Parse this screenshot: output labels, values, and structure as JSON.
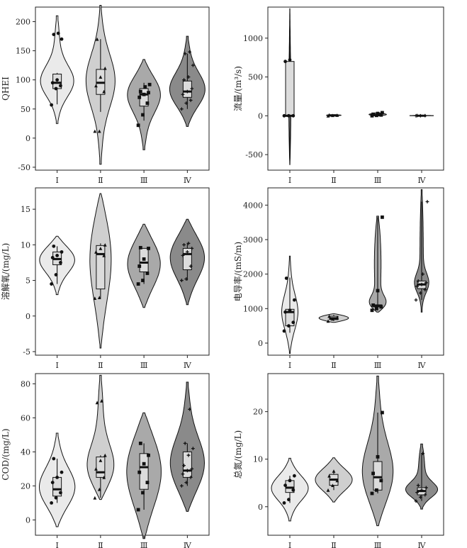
{
  "colors": {
    "I": "#eaeaea",
    "II": "#cfcfcf",
    "III": "#a9a9a9",
    "IV": "#8a8a8a",
    "box_fill": "#dcdcdc",
    "stroke": "#111111"
  },
  "chart_data": [
    {
      "type": "violin",
      "ylabel": "QHEI",
      "ylim": [
        -55,
        225
      ],
      "yticks": [
        -50,
        0,
        50,
        100,
        150,
        200
      ],
      "categories": [
        "Ⅰ",
        "Ⅱ",
        "Ⅲ",
        "Ⅳ"
      ],
      "groups": [
        {
          "min": 25,
          "max": 210,
          "q1": 85,
          "median": 95,
          "q3": 110,
          "whisker_lo": 58,
          "whisker_hi": 112,
          "mode": 95,
          "spread": 0.95,
          "points": [
            57,
            85,
            90,
            95,
            100,
            170,
            178,
            180
          ]
        },
        {
          "min": -45,
          "max": 228,
          "q1": 75,
          "median": 95,
          "q3": 118,
          "whisker_lo": 45,
          "whisker_hi": 170,
          "mode": 100,
          "spread": 0.8,
          "points": [
            12,
            12,
            80,
            90,
            105,
            120,
            170
          ]
        },
        {
          "min": -20,
          "max": 135,
          "q1": 55,
          "median": 75,
          "q3": 85,
          "whisker_lo": 30,
          "whisker_hi": 95,
          "mode": 80,
          "spread": 0.95,
          "points": [
            22,
            40,
            60,
            70,
            75,
            78,
            80,
            88,
            92
          ]
        },
        {
          "min": 20,
          "max": 175,
          "q1": 70,
          "median": 80,
          "q3": 98,
          "whisker_lo": 50,
          "whisker_hi": 145,
          "mode": 80,
          "spread": 1.0,
          "points": [
            50,
            60,
            65,
            75,
            80,
            85,
            100,
            105,
            125,
            145,
            148
          ]
        }
      ]
    },
    {
      "type": "violin",
      "ylabel": "流量/(m³/s)",
      "ylim": [
        -700,
        1400
      ],
      "yticks": [
        -500,
        0,
        500,
        1000
      ],
      "categories": [
        "Ⅰ",
        "Ⅱ",
        "Ⅲ",
        "Ⅳ"
      ],
      "groups": [
        {
          "min": -630,
          "max": 1380,
          "q1": 0,
          "median": 0,
          "q3": 700,
          "whisker_lo": -630,
          "whisker_hi": 1380,
          "mode": 0,
          "spread": 0.06,
          "points": [
            0,
            0,
            0,
            700,
            720
          ]
        },
        {
          "min": 0,
          "max": 15,
          "q1": 0,
          "median": 5,
          "q3": 10,
          "whisker_lo": 0,
          "whisker_hi": 15,
          "mode": 5,
          "spread": 0.4,
          "points": [
            0,
            5,
            8,
            12
          ]
        },
        {
          "min": 0,
          "max": 40,
          "q1": 0,
          "median": 10,
          "q3": 20,
          "whisker_lo": 0,
          "whisker_hi": 40,
          "mode": 10,
          "spread": 0.5,
          "points": [
            0,
            5,
            10,
            20,
            30,
            40
          ]
        },
        {
          "min": 0,
          "max": 5,
          "q1": 0,
          "median": 1,
          "q3": 3,
          "whisker_lo": 0,
          "whisker_hi": 5,
          "mode": 1,
          "spread": 0.7,
          "points": [
            0,
            1,
            2,
            3
          ]
        }
      ]
    },
    {
      "type": "violin",
      "ylabel": "溶解氧/(mg/L)",
      "ylim": [
        -5.5,
        18
      ],
      "yticks": [
        -5,
        0,
        5,
        10,
        15
      ],
      "categories": [
        "Ⅰ",
        "Ⅱ",
        "Ⅲ",
        "Ⅳ"
      ],
      "groups": [
        {
          "min": 3,
          "max": 11.2,
          "q1": 7.2,
          "median": 8.0,
          "q3": 9.0,
          "whisker_lo": 4.5,
          "whisker_hi": 9.8,
          "mode": 8.2,
          "spread": 1.0,
          "points": [
            4.5,
            5.8,
            7.5,
            8.2,
            8.5,
            9.0,
            9.8
          ]
        },
        {
          "min": -4.5,
          "max": 17.2,
          "q1": 3.8,
          "median": 8.7,
          "q3": 9.9,
          "whisker_lo": 2.5,
          "whisker_hi": 10.2,
          "mode": 9.0,
          "spread": 0.6,
          "points": [
            2.5,
            2.6,
            8.5,
            9.0,
            9.5,
            10.0
          ]
        },
        {
          "min": 1.2,
          "max": 12.9,
          "q1": 6.2,
          "median": 7.5,
          "q3": 9.5,
          "whisker_lo": 4.5,
          "whisker_hi": 9.5,
          "mode": 7.5,
          "spread": 0.9,
          "points": [
            4.5,
            5.0,
            6.0,
            7.0,
            8.0,
            9.5,
            9.6
          ]
        },
        {
          "min": 1.6,
          "max": 13.6,
          "q1": 6.5,
          "median": 8.7,
          "q3": 9.5,
          "whisker_lo": 5.0,
          "whisker_hi": 10.2,
          "mode": 8.5,
          "spread": 0.95,
          "points": [
            5.0,
            5.2,
            7.0,
            8.5,
            9.0,
            9.5,
            10.0,
            10.2
          ]
        }
      ]
    },
    {
      "type": "violin",
      "ylabel": "电导率/(mS/m)",
      "ylim": [
        -350,
        4500
      ],
      "yticks": [
        0,
        1000,
        2000,
        3000,
        4000
      ],
      "categories": [
        "Ⅰ",
        "Ⅱ",
        "Ⅲ",
        "Ⅳ"
      ],
      "groups": [
        {
          "min": -300,
          "max": 2520,
          "q1": 500,
          "median": 900,
          "q3": 980,
          "whisker_lo": 300,
          "whisker_hi": 1900,
          "mode": 850,
          "spread": 0.45,
          "points": [
            350,
            500,
            600,
            900,
            950,
            1250,
            1880
          ]
        },
        {
          "min": 600,
          "max": 850,
          "q1": 680,
          "median": 720,
          "q3": 780,
          "whisker_lo": 640,
          "whisker_hi": 820,
          "mode": 730,
          "spread": 0.8,
          "points": [
            640,
            700,
            740,
            780
          ]
        },
        {
          "min": 900,
          "max": 3680,
          "q1": 1050,
          "median": 1080,
          "q3": 1110,
          "whisker_lo": 950,
          "whisker_hi": 3650,
          "mode": 1080,
          "spread": 1.0,
          "points": [
            950,
            1000,
            1050,
            1100,
            1520,
            3650
          ]
        },
        {
          "min": 900,
          "max": 4450,
          "q1": 1580,
          "median": 1700,
          "q3": 1800,
          "whisker_lo": 1250,
          "whisker_hi": 4100,
          "mode": 1700,
          "spread": 0.5,
          "points": [
            1250,
            1450,
            1550,
            1650,
            1700,
            1750,
            1800,
            2000,
            4100
          ]
        }
      ]
    },
    {
      "type": "violin",
      "ylabel": "COD/(mg/L)",
      "ylim": [
        -9,
        86
      ],
      "yticks": [
        0,
        20,
        40,
        60,
        80
      ],
      "categories": [
        "Ⅰ",
        "Ⅱ",
        "Ⅲ",
        "Ⅳ"
      ],
      "groups": [
        {
          "min": -4,
          "max": 51,
          "q1": 14,
          "median": 18,
          "q3": 25,
          "whisker_lo": 10,
          "whisker_hi": 36,
          "mode": 18,
          "spread": 1.0,
          "points": [
            10,
            13,
            16,
            22,
            25,
            28,
            36
          ]
        },
        {
          "min": 12,
          "max": 85,
          "q1": 25,
          "median": 28,
          "q3": 37,
          "whisker_lo": 13,
          "whisker_hi": 38,
          "mode": 28,
          "spread": 0.9,
          "points": [
            13,
            18,
            25,
            30,
            35,
            38,
            69,
            70
          ]
        },
        {
          "min": -11,
          "max": 63,
          "q1": 18,
          "median": 31,
          "q3": 39,
          "whisker_lo": 6,
          "whisker_hi": 45,
          "mode": 30,
          "spread": 0.95,
          "points": [
            6,
            16,
            22,
            28,
            33,
            38,
            45
          ]
        },
        {
          "min": 5,
          "max": 81,
          "q1": 25,
          "median": 29,
          "q3": 40,
          "whisker_lo": 20,
          "whisker_hi": 45,
          "mode": 30,
          "spread": 1.0,
          "points": [
            20,
            22,
            25,
            27,
            29,
            30,
            32,
            38,
            42,
            45,
            65
          ]
        }
      ]
    },
    {
      "type": "violin",
      "ylabel": "总氮/(mg/L)",
      "ylim": [
        -6,
        28
      ],
      "yticks": [
        0,
        10,
        20
      ],
      "categories": [
        "Ⅰ",
        "Ⅱ",
        "Ⅲ",
        "Ⅳ"
      ],
      "groups": [
        {
          "min": -3,
          "max": 10.2,
          "q1": 3,
          "median": 4,
          "q3": 5.5,
          "whisker_lo": 0.8,
          "whisker_hi": 6.5,
          "mode": 4,
          "spread": 1.0,
          "points": [
            0.8,
            1.5,
            3.5,
            4.5,
            5.5,
            6.5
          ]
        },
        {
          "min": 1,
          "max": 10.3,
          "q1": 4.5,
          "median": 5.7,
          "q3": 6.8,
          "whisker_lo": 3.5,
          "whisker_hi": 7.5,
          "mode": 5.7,
          "spread": 1.0,
          "points": [
            3.5,
            4.5,
            5.5,
            6.5,
            7.5
          ]
        },
        {
          "min": -4,
          "max": 27.5,
          "q1": 3.5,
          "median": 6.2,
          "q3": 9.5,
          "whisker_lo": 2.8,
          "whisker_hi": 19.8,
          "mode": 6,
          "spread": 0.9,
          "points": [
            2.8,
            3.5,
            5.5,
            7,
            10.5,
            19.8
          ]
        },
        {
          "min": -0.5,
          "max": 13.2,
          "q1": 2.5,
          "median": 3.3,
          "q3": 4,
          "whisker_lo": 1.2,
          "whisker_hi": 11.2,
          "mode": 3.3,
          "spread": 1.0,
          "points": [
            1.2,
            2,
            2.5,
            3,
            3.5,
            4,
            4.5,
            11.2
          ]
        }
      ]
    }
  ]
}
